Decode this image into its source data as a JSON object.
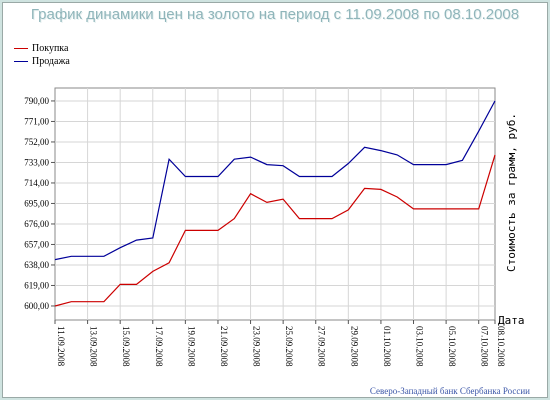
{
  "chart_data": {
    "type": "line",
    "title": "График динамики цен на золото на период с 11.09.2008 по 08.10.2008",
    "xlabel": "Дата",
    "ylabel": "Стоимость за грамм, руб.",
    "x": [
      "11.09.2008",
      "12.09.2008",
      "13.09.2008",
      "14.09.2008",
      "15.09.2008",
      "16.09.2008",
      "17.09.2008",
      "18.09.2008",
      "19.09.2008",
      "20.09.2008",
      "21.09.2008",
      "22.09.2008",
      "23.09.2008",
      "24.09.2008",
      "25.09.2008",
      "26.09.2008",
      "27.09.2008",
      "28.09.2008",
      "29.09.2008",
      "30.09.2008",
      "01.10.2008",
      "02.10.2008",
      "03.10.2008",
      "04.10.2008",
      "05.10.2008",
      "06.10.2008",
      "07.10.2008",
      "08.10.2008"
    ],
    "x_tick_labels": [
      "11.09.2008",
      "13.09.2008",
      "15.09.2008",
      "17.09.2008",
      "19.09.2008",
      "21.09.2008",
      "23.09.2008",
      "25.09.2008",
      "27.09.2008",
      "29.09.2008",
      "01.10.2008",
      "03.10.2008",
      "05.10.2008",
      "07.10.2008",
      "08.10.2008"
    ],
    "y_ticks": [
      "600,00",
      "619,00",
      "638,00",
      "657,00",
      "676,00",
      "695,00",
      "714,00",
      "733,00",
      "752,00",
      "771,00",
      "790,00"
    ],
    "ylim": [
      587,
      802
    ],
    "series": [
      {
        "name": "Покупка",
        "color": "#cc0000",
        "values": [
          600,
          604,
          604,
          604,
          620,
          620,
          632,
          640,
          670,
          670,
          670,
          681,
          704,
          696,
          699,
          681,
          681,
          681,
          689,
          709,
          708,
          701,
          690,
          690,
          690,
          690,
          690,
          740
        ]
      },
      {
        "name": "Продажа",
        "color": "#000099",
        "values": [
          643,
          646,
          646,
          646,
          654,
          661,
          663,
          736,
          720,
          720,
          720,
          736,
          738,
          731,
          730,
          720,
          720,
          720,
          732,
          747,
          744,
          740,
          731,
          731,
          731,
          735,
          762,
          790
        ]
      }
    ],
    "legend_position": "top-left",
    "grid": true
  },
  "footer": {
    "credit": "Северо-Западный банк Сбербанка России"
  }
}
